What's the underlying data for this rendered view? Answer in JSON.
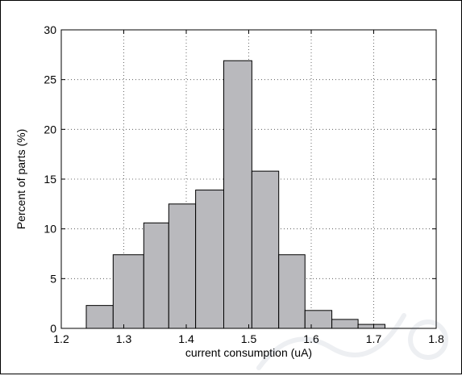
{
  "chart_data": {
    "type": "bar",
    "title": "",
    "xlabel": "current consumption (uA)",
    "ylabel": "Percent of parts (%)",
    "xlim": [
      1.2,
      1.8
    ],
    "ylim": [
      0,
      30
    ],
    "xticks": [
      "1.2",
      "1.3",
      "1.4",
      "1.5",
      "1.6",
      "1.7",
      "1.8"
    ],
    "yticks": [
      "0",
      "5",
      "10",
      "15",
      "20",
      "25",
      "30"
    ],
    "grid": true,
    "bar_color": "#b9b9bd",
    "bins": [
      {
        "x0": 1.24,
        "x1": 1.283,
        "value": 2.3
      },
      {
        "x0": 1.283,
        "x1": 1.332,
        "value": 7.4
      },
      {
        "x0": 1.332,
        "x1": 1.372,
        "value": 10.6
      },
      {
        "x0": 1.372,
        "x1": 1.415,
        "value": 12.5
      },
      {
        "x0": 1.415,
        "x1": 1.46,
        "value": 13.9
      },
      {
        "x0": 1.46,
        "x1": 1.505,
        "value": 26.9
      },
      {
        "x0": 1.505,
        "x1": 1.548,
        "value": 15.8
      },
      {
        "x0": 1.548,
        "x1": 1.59,
        "value": 7.4
      },
      {
        "x0": 1.59,
        "x1": 1.633,
        "value": 1.8
      },
      {
        "x0": 1.633,
        "x1": 1.675,
        "value": 0.9
      },
      {
        "x0": 1.675,
        "x1": 1.718,
        "value": 0.4
      }
    ]
  }
}
